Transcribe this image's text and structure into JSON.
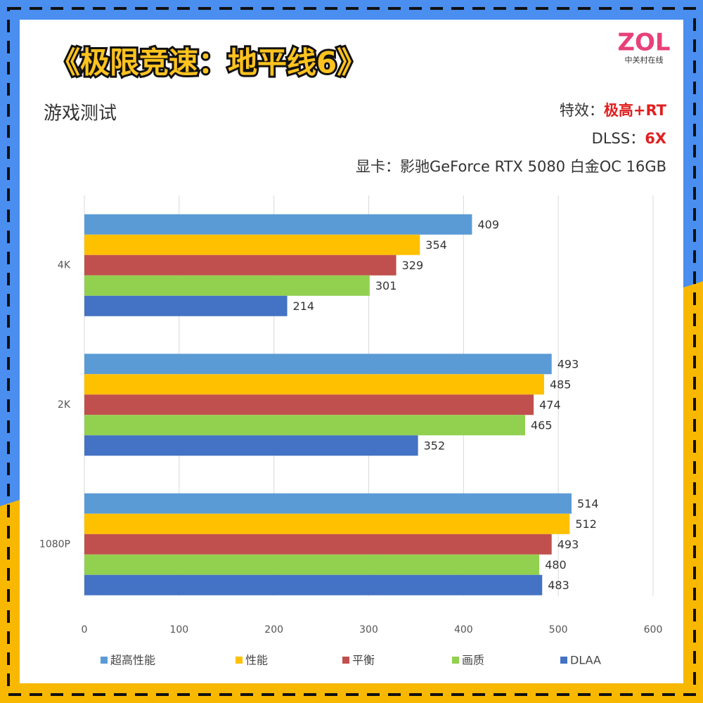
{
  "logo": {
    "brand": "ZOL",
    "sub": "中关村在线"
  },
  "chart_data": {
    "type": "bar",
    "orientation": "horizontal",
    "title": "《极限竞速：地平线6》",
    "subtitle": "游戏测试",
    "notes": [
      {
        "label": "特效：",
        "value": "极高+RT"
      },
      {
        "label": "DLSS：",
        "value": "6X"
      },
      {
        "label": "显卡：影驰GeForce RTX 5080 白金OC 16GB"
      }
    ],
    "categories": [
      "4K",
      "2K",
      "1080P"
    ],
    "series": [
      {
        "name": "超高性能",
        "color": "#5b9bd5",
        "values": [
          409,
          493,
          514
        ]
      },
      {
        "name": "性能",
        "color": "#ffc000",
        "values": [
          354,
          485,
          512
        ]
      },
      {
        "name": "平衡",
        "color": "#c0504d",
        "values": [
          329,
          474,
          493
        ]
      },
      {
        "name": "画质",
        "color": "#92d050",
        "values": [
          301,
          465,
          480
        ]
      },
      {
        "name": "DLAA",
        "color": "#4472c4",
        "values": [
          214,
          352,
          483
        ]
      }
    ],
    "xlim": [
      0,
      600
    ],
    "xticks": [
      0,
      100,
      200,
      300,
      400,
      500,
      600
    ],
    "grid": true
  }
}
